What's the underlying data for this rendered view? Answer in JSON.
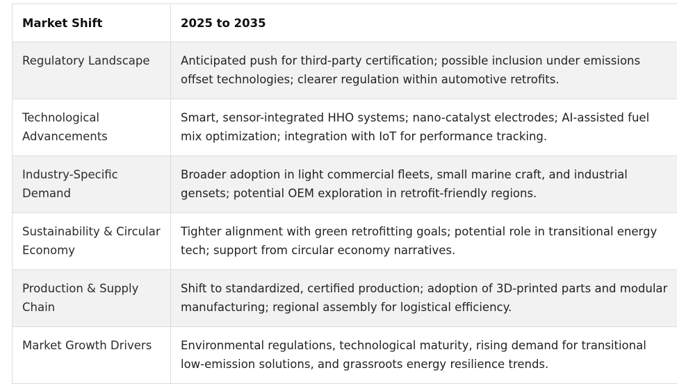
{
  "table": {
    "headers": [
      "Market Shift",
      "2025 to 2035"
    ],
    "rows": [
      {
        "shift": "Regulatory Landscape",
        "outlook": "Anticipated push for third-party certification; possible inclusion under emissions offset technologies; clearer regulation within automotive retrofits."
      },
      {
        "shift": "Technological Advancements",
        "outlook": "Smart, sensor-integrated HHO systems; nano-catalyst electrodes; AI-assisted fuel mix optimization; integration with IoT for performance tracking."
      },
      {
        "shift": "Industry-Specific Demand",
        "outlook": "Broader adoption in light commercial fleets, small marine craft, and industrial gensets; potential OEM exploration in retrofit-friendly regions."
      },
      {
        "shift": "Sustainability & Circular Economy",
        "outlook": "Tighter alignment with green retrofitting goals; potential role in transitional energy tech; support from circular economy narratives."
      },
      {
        "shift": "Production & Supply Chain",
        "outlook": "Shift to standardized, certified production; adoption of 3D-printed parts and modular manufacturing; regional assembly for logistical efficiency."
      },
      {
        "shift": "Market Growth Drivers",
        "outlook": "Environmental regulations, technological maturity, rising demand for transitional low-emission solutions, and grassroots energy resilience trends."
      }
    ]
  },
  "colors": {
    "shaded_row": "#f2f2f2",
    "border": "#dcdcdc",
    "text": "#222222"
  }
}
